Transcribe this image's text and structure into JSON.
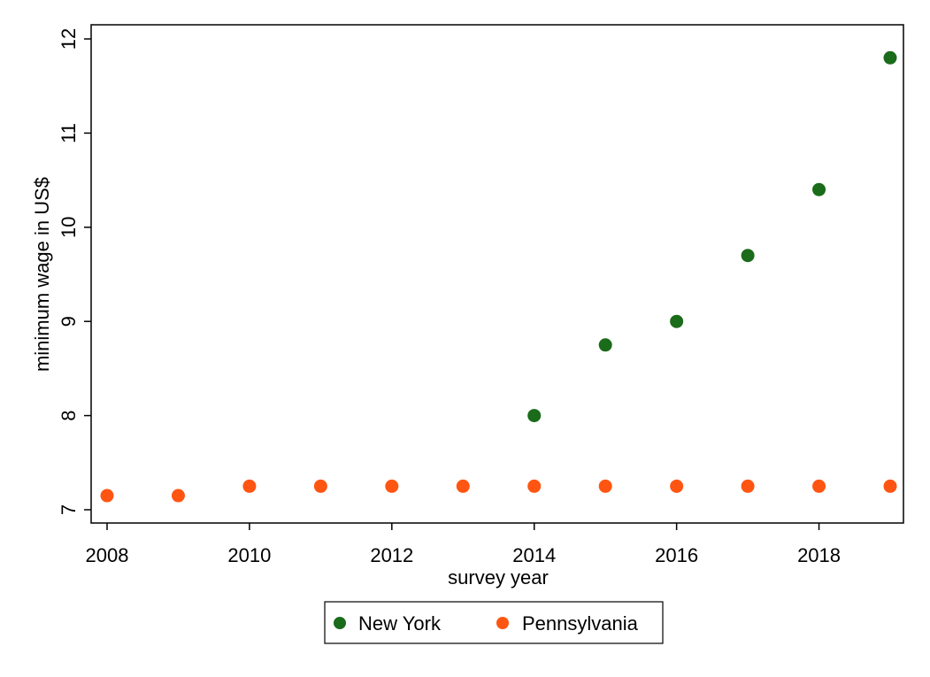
{
  "chart_data": {
    "type": "scatter",
    "xlabel": "survey year",
    "ylabel": "minimum wage in US$",
    "xlim": [
      2008,
      2019
    ],
    "ylim": [
      7,
      12
    ],
    "x_ticks": [
      "2008",
      "2010",
      "2012",
      "2014",
      "2016",
      "2018"
    ],
    "y_ticks": [
      "7",
      "8",
      "9",
      "10",
      "11",
      "12"
    ],
    "grid": false,
    "legend_position": "bottom",
    "series": [
      {
        "name": "New York",
        "color": "#1a6b1a",
        "points": [
          {
            "x": 2014,
            "y": 8.0
          },
          {
            "x": 2015,
            "y": 8.75
          },
          {
            "x": 2016,
            "y": 9.0
          },
          {
            "x": 2017,
            "y": 9.7
          },
          {
            "x": 2018,
            "y": 10.4
          },
          {
            "x": 2019,
            "y": 11.8
          }
        ]
      },
      {
        "name": "Pennsylvania",
        "color": "#ff5512",
        "points": [
          {
            "x": 2008,
            "y": 7.15
          },
          {
            "x": 2009,
            "y": 7.15
          },
          {
            "x": 2010,
            "y": 7.25
          },
          {
            "x": 2011,
            "y": 7.25
          },
          {
            "x": 2012,
            "y": 7.25
          },
          {
            "x": 2013,
            "y": 7.25
          },
          {
            "x": 2014,
            "y": 7.25
          },
          {
            "x": 2015,
            "y": 7.25
          },
          {
            "x": 2016,
            "y": 7.25
          },
          {
            "x": 2017,
            "y": 7.25
          },
          {
            "x": 2018,
            "y": 7.25
          },
          {
            "x": 2019,
            "y": 7.25
          }
        ]
      }
    ]
  }
}
